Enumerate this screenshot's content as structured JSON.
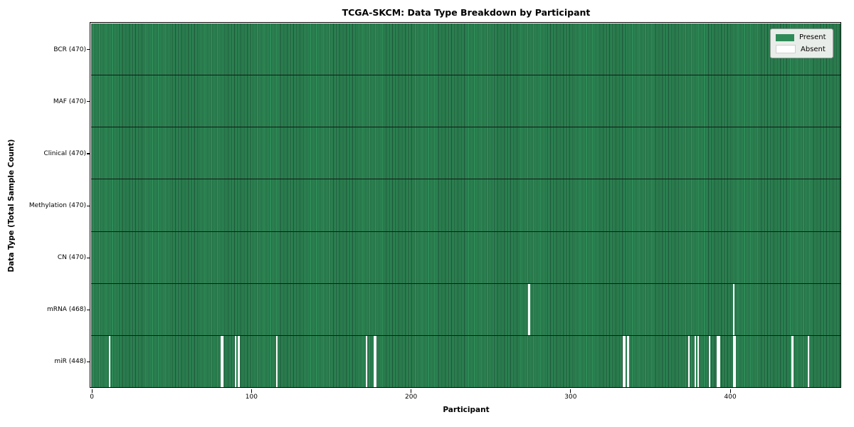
{
  "title": "TCGA-SKCM: Data Type Breakdown by Participant",
  "legend": {
    "present_label": "Present",
    "absent_label": "Absent"
  },
  "colors": {
    "present": "#2e8b57",
    "cell_edge": "#1c4e33",
    "absent": "#ffffff",
    "axis": "#000000",
    "legend_bg": "#e9ede9"
  },
  "chart_data": {
    "type": "heatmap",
    "title": "TCGA-SKCM: Data Type Breakdown by Participant",
    "xlabel": "Participant",
    "ylabel": "Data Type (Total Sample Count)",
    "n_participants": 470,
    "x_ticks": [
      0,
      100,
      200,
      300,
      400
    ],
    "grid": false,
    "legend_entries": [
      "Present",
      "Absent"
    ],
    "legend_position": "upper right",
    "cell_states": {
      "present": 1,
      "absent": 0
    },
    "rows": [
      {
        "data_type": "BCR",
        "label": "BCR (470)",
        "present_count": 470,
        "absent_participants": []
      },
      {
        "data_type": "MAF",
        "label": "MAF (470)",
        "present_count": 470,
        "absent_participants": []
      },
      {
        "data_type": "Clinical",
        "label": "Clinical (470)",
        "present_count": 470,
        "absent_participants": []
      },
      {
        "data_type": "Methylation",
        "label": "Methylation (470)",
        "present_count": 470,
        "absent_participants": []
      },
      {
        "data_type": "CN",
        "label": "CN (470)",
        "present_count": 470,
        "absent_participants": []
      },
      {
        "data_type": "mRNA",
        "label": "mRNA (468)",
        "present_count": 468,
        "absent_participants": [
          274,
          402
        ]
      },
      {
        "data_type": "miR",
        "label": "miR (448)",
        "present_count": 448,
        "absent_participants": [
          11,
          81,
          82,
          90,
          92,
          116,
          172,
          177,
          178,
          333,
          334,
          336,
          374,
          378,
          380,
          387,
          392,
          393,
          402,
          403,
          439,
          449
        ]
      }
    ]
  }
}
